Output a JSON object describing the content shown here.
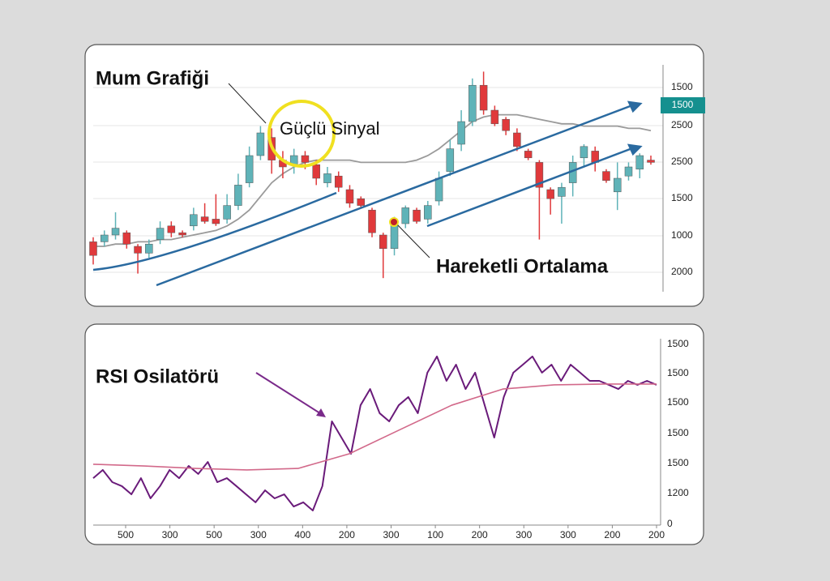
{
  "chart_data": [
    {
      "type": "candlestick",
      "annotations": [
        "Mum Grafiği",
        "Güçlü Sinyal",
        "Hareketli Ortalama"
      ],
      "badge": "1500",
      "price_axis_labels": [
        "1500",
        "2500",
        "2500",
        "1500",
        "1000",
        "2000"
      ],
      "ylim": [
        0,
        100
      ],
      "up_color": "#5fb3b8",
      "down_color": "#e0393b",
      "ma_color": "#9a9a9a",
      "candles": [
        {
          "open": 22,
          "high": 24,
          "low": 12,
          "close": 16
        },
        {
          "open": 22,
          "high": 27,
          "low": 20,
          "close": 25
        },
        {
          "open": 25,
          "high": 35,
          "low": 23,
          "close": 28
        },
        {
          "open": 26,
          "high": 27,
          "low": 19,
          "close": 21
        },
        {
          "open": 20,
          "high": 21,
          "low": 8,
          "close": 17
        },
        {
          "open": 17,
          "high": 23,
          "low": 15,
          "close": 21
        },
        {
          "open": 23,
          "high": 31,
          "low": 21,
          "close": 28
        },
        {
          "open": 29,
          "high": 31,
          "low": 24,
          "close": 26
        },
        {
          "open": 26,
          "high": 27,
          "low": 24,
          "close": 25
        },
        {
          "open": 29,
          "high": 37,
          "low": 27,
          "close": 34
        },
        {
          "open": 33,
          "high": 39,
          "low": 30,
          "close": 31
        },
        {
          "open": 32,
          "high": 43,
          "low": 29,
          "close": 30
        },
        {
          "open": 32,
          "high": 43,
          "low": 30,
          "close": 38
        },
        {
          "open": 38,
          "high": 52,
          "low": 36,
          "close": 47
        },
        {
          "open": 48,
          "high": 64,
          "low": 46,
          "close": 60
        },
        {
          "open": 60,
          "high": 73,
          "low": 58,
          "close": 70
        },
        {
          "open": 68,
          "high": 72,
          "low": 52,
          "close": 58
        },
        {
          "open": 58,
          "high": 62,
          "low": 50,
          "close": 55
        },
        {
          "open": 56,
          "high": 63,
          "low": 52,
          "close": 60
        },
        {
          "open": 60,
          "high": 62,
          "low": 54,
          "close": 57
        },
        {
          "open": 56,
          "high": 58,
          "low": 47,
          "close": 50
        },
        {
          "open": 48,
          "high": 55,
          "low": 46,
          "close": 52
        },
        {
          "open": 51,
          "high": 53,
          "low": 44,
          "close": 46
        },
        {
          "open": 45,
          "high": 47,
          "low": 37,
          "close": 39
        },
        {
          "open": 41,
          "high": 42,
          "low": 37,
          "close": 38
        },
        {
          "open": 36,
          "high": 37,
          "low": 24,
          "close": 26
        },
        {
          "open": 25,
          "high": 26,
          "low": 6,
          "close": 19
        },
        {
          "open": 19,
          "high": 33,
          "low": 16,
          "close": 30
        },
        {
          "open": 30,
          "high": 38,
          "low": 28,
          "close": 37
        },
        {
          "open": 36,
          "high": 37,
          "low": 30,
          "close": 31
        },
        {
          "open": 32,
          "high": 40,
          "low": 30,
          "close": 38
        },
        {
          "open": 40,
          "high": 53,
          "low": 38,
          "close": 50
        },
        {
          "open": 53,
          "high": 67,
          "low": 51,
          "close": 63
        },
        {
          "open": 65,
          "high": 80,
          "low": 62,
          "close": 75
        },
        {
          "open": 75,
          "high": 94,
          "low": 73,
          "close": 91
        },
        {
          "open": 91,
          "high": 97,
          "low": 78,
          "close": 80
        },
        {
          "open": 80,
          "high": 82,
          "low": 73,
          "close": 74
        },
        {
          "open": 76,
          "high": 77,
          "low": 69,
          "close": 71
        },
        {
          "open": 70,
          "high": 72,
          "low": 62,
          "close": 64
        },
        {
          "open": 62,
          "high": 63,
          "low": 58,
          "close": 59
        },
        {
          "open": 57,
          "high": 58,
          "low": 23,
          "close": 46
        },
        {
          "open": 45,
          "high": 46,
          "low": 34,
          "close": 41
        },
        {
          "open": 42,
          "high": 48,
          "low": 30,
          "close": 46
        },
        {
          "open": 48,
          "high": 60,
          "low": 42,
          "close": 57
        },
        {
          "open": 59,
          "high": 65,
          "low": 55,
          "close": 64
        },
        {
          "open": 62,
          "high": 64,
          "low": 53,
          "close": 57
        },
        {
          "open": 53,
          "high": 54,
          "low": 48,
          "close": 49
        },
        {
          "open": 44,
          "high": 57,
          "low": 36,
          "close": 50
        },
        {
          "open": 51,
          "high": 57,
          "low": 49,
          "close": 55
        },
        {
          "open": 54,
          "high": 61,
          "low": 50,
          "close": 60
        },
        {
          "open": 58,
          "high": 60,
          "low": 56,
          "close": 57
        }
      ],
      "moving_average": [
        20,
        20,
        21,
        21,
        22,
        22,
        23,
        23,
        24,
        25,
        26,
        27,
        29,
        32,
        36,
        42,
        48,
        52,
        55,
        57,
        58,
        58,
        58,
        58,
        57,
        57,
        57,
        57,
        57,
        58,
        60,
        63,
        67,
        71,
        75,
        77,
        78,
        78,
        78,
        77,
        76,
        75,
        74,
        74,
        73,
        73,
        73,
        73,
        72,
        72,
        71
      ]
    },
    {
      "type": "line",
      "title": "RSI Osilatörü",
      "y_axis_labels": [
        "1500",
        "1500",
        "1500",
        "1500",
        "1500",
        "1200",
        "0"
      ],
      "x_axis_labels": [
        "500",
        "300",
        "500",
        "300",
        "400",
        "200",
        "300",
        "100",
        "200",
        "300",
        "300",
        "200",
        "200"
      ],
      "ylim": [
        0,
        100
      ],
      "series": [
        {
          "color": "#6a1b7a",
          "values": [
            25.5,
            29.8,
            23.4,
            21.3,
            17,
            25.5,
            14.9,
            21.3,
            29.8,
            25.5,
            31.9,
            27.7,
            34,
            23.4,
            25.5,
            21.3,
            17,
            12.8,
            19.1,
            14.9,
            17,
            10.6,
            12.8,
            8.5,
            21.3,
            55.3,
            46.8,
            38.3,
            63.8,
            72.3,
            59.6,
            55.3,
            63.8,
            68.1,
            59.6,
            80.9,
            89.4,
            76.6,
            85.1,
            72.3,
            80.9,
            63.8,
            46.8,
            68.1,
            80.9,
            85.1,
            89.4,
            80.9,
            85.1,
            76.6,
            85.1,
            80.9,
            76.6,
            76.6,
            74.5,
            72.3,
            76.6,
            74.5,
            76.6,
            74.5
          ]
        },
        {
          "color": "#d2698a",
          "values": [
            32.8,
            31.9,
            30.6,
            29.8,
            30.6,
            38.3,
            51.1,
            63.8,
            72.3,
            74.5,
            74.9,
            74.9
          ]
        }
      ]
    }
  ]
}
